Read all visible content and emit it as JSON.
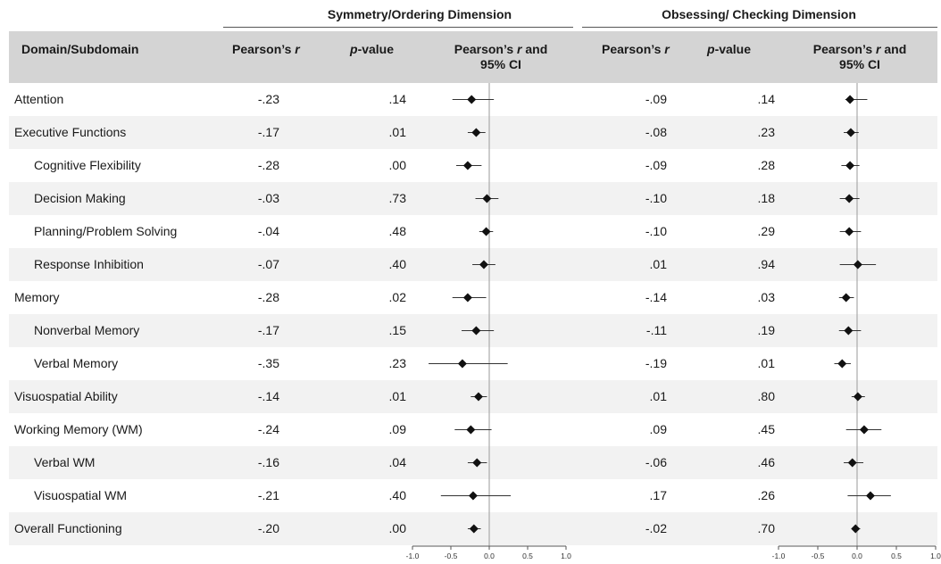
{
  "groups": [
    "Symmetry/Ordering Dimension",
    "Obsessing/ Checking Dimension"
  ],
  "header": {
    "domain": "Domain/Subdomain",
    "pearson": "Pearson’s ",
    "r": "r",
    "p": "p",
    "value": "-value",
    "ci_pre": "Pearson’s ",
    "ci_post": " and",
    "ci_line2": "95% CI"
  },
  "rows": [
    {
      "label": "Attention",
      "indent": false,
      "r1": "-.23",
      "p1": ".14",
      "r2": "-.09",
      "p2": ".14"
    },
    {
      "label": "Executive Functions",
      "indent": false,
      "r1": "-.17",
      "p1": ".01",
      "r2": "-.08",
      "p2": ".23"
    },
    {
      "label": "Cognitive Flexibility",
      "indent": true,
      "r1": "-.28",
      "p1": ".00",
      "r2": "-.09",
      "p2": ".28"
    },
    {
      "label": "Decision Making",
      "indent": true,
      "r1": "-.03",
      "p1": ".73",
      "r2": "-.10",
      "p2": ".18"
    },
    {
      "label": "Planning/Problem Solving",
      "indent": true,
      "r1": "-.04",
      "p1": ".48",
      "r2": "-.10",
      "p2": ".29"
    },
    {
      "label": "Response Inhibition",
      "indent": true,
      "r1": "-.07",
      "p1": ".40",
      "r2": ".01",
      "p2": ".94"
    },
    {
      "label": "Memory",
      "indent": false,
      "r1": "-.28",
      "p1": ".02",
      "r2": "-.14",
      "p2": ".03"
    },
    {
      "label": "Nonverbal Memory",
      "indent": true,
      "r1": "-.17",
      "p1": ".15",
      "r2": "-.11",
      "p2": ".19"
    },
    {
      "label": "Verbal Memory",
      "indent": true,
      "r1": "-.35",
      "p1": ".23",
      "r2": "-.19",
      "p2": ".01"
    },
    {
      "label": "Visuospatial Ability",
      "indent": false,
      "r1": "-.14",
      "p1": ".01",
      "r2": ".01",
      "p2": ".80"
    },
    {
      "label": "Working Memory (WM)",
      "indent": false,
      "r1": "-.24",
      "p1": ".09",
      "r2": ".09",
      "p2": ".45"
    },
    {
      "label": "Verbal WM",
      "indent": true,
      "r1": "-.16",
      "p1": ".04",
      "r2": "-.06",
      "p2": ".46"
    },
    {
      "label": "Visuospatial WM",
      "indent": true,
      "r1": "-.21",
      "p1": ".40",
      "r2": ".17",
      "p2": ".26"
    },
    {
      "label": "Overall Functioning",
      "indent": false,
      "r1": "-.20",
      "p1": ".00",
      "r2": "-.02",
      "p2": ".70"
    }
  ],
  "chart_data": [
    {
      "type": "scatter",
      "title": "Symmetry/Ordering Dimension",
      "xlabel": "Pearson’s r and 95% CI",
      "xlim": [
        -1.0,
        1.0
      ],
      "xticks": [
        "-1.0",
        "-0.5",
        "0.0",
        "0.5",
        "1.0"
      ],
      "categories": [
        "Attention",
        "Executive Functions",
        "Cognitive Flexibility",
        "Decision Making",
        "Planning/Problem Solving",
        "Response Inhibition",
        "Memory",
        "Nonverbal Memory",
        "Verbal Memory",
        "Visuospatial Ability",
        "Working Memory (WM)",
        "Verbal WM",
        "Visuospatial WM",
        "Overall Functioning"
      ],
      "values": [
        -0.23,
        -0.17,
        -0.28,
        -0.03,
        -0.04,
        -0.07,
        -0.28,
        -0.17,
        -0.35,
        -0.14,
        -0.24,
        -0.16,
        -0.21,
        -0.2
      ],
      "ci_low": [
        -0.48,
        -0.28,
        -0.43,
        -0.18,
        -0.13,
        -0.22,
        -0.48,
        -0.36,
        -0.79,
        -0.24,
        -0.45,
        -0.28,
        -0.63,
        -0.28
      ],
      "ci_high": [
        0.06,
        -0.05,
        -0.1,
        0.12,
        0.05,
        0.08,
        -0.04,
        0.06,
        0.24,
        -0.03,
        0.03,
        -0.03,
        0.28,
        -0.11
      ]
    },
    {
      "type": "scatter",
      "title": "Obsessing/ Checking Dimension",
      "xlabel": "Pearson’s r and 95% CI",
      "xlim": [
        -1.0,
        1.0
      ],
      "xticks": [
        "-1.0",
        "-0.5",
        "0.0",
        "0.5",
        "1.0"
      ],
      "categories": [
        "Attention",
        "Executive Functions",
        "Cognitive Flexibility",
        "Decision Making",
        "Planning/Problem Solving",
        "Response Inhibition",
        "Memory",
        "Nonverbal Memory",
        "Verbal Memory",
        "Visuospatial Ability",
        "Working Memory (WM)",
        "Verbal WM",
        "Visuospatial WM",
        "Overall Functioning"
      ],
      "values": [
        -0.09,
        -0.08,
        -0.09,
        -0.1,
        -0.1,
        0.01,
        -0.14,
        -0.11,
        -0.19,
        0.01,
        0.09,
        -0.06,
        0.17,
        -0.02
      ],
      "ci_low": [
        -0.15,
        -0.17,
        -0.2,
        -0.22,
        -0.22,
        -0.22,
        -0.23,
        -0.23,
        -0.29,
        -0.07,
        -0.14,
        -0.17,
        -0.12,
        -0.07
      ],
      "ci_high": [
        0.13,
        0.02,
        0.03,
        0.03,
        0.05,
        0.24,
        -0.04,
        0.05,
        -0.08,
        0.1,
        0.31,
        0.08,
        0.43,
        0.04
      ]
    }
  ]
}
